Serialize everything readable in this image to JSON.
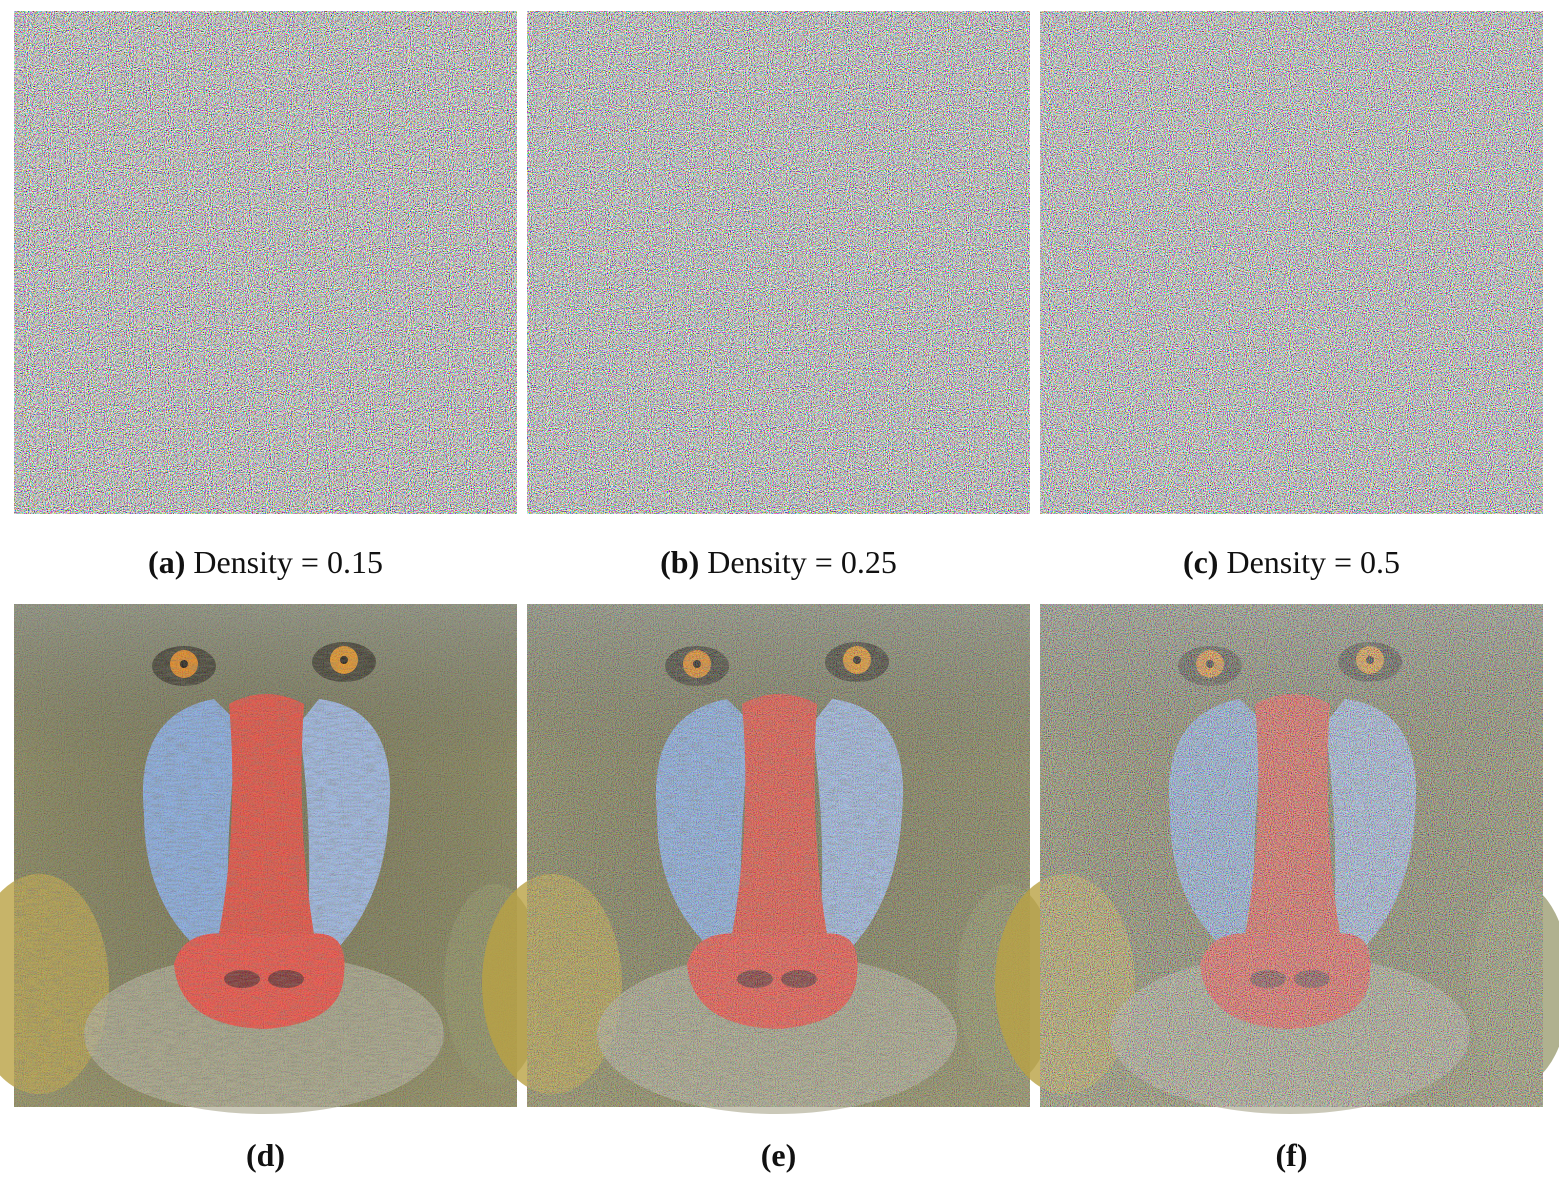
{
  "figure": {
    "panels": [
      {
        "label": "(a)",
        "caption": "Density = 0.15"
      },
      {
        "label": "(b)",
        "caption": "Density = 0.25"
      },
      {
        "label": "(c)",
        "caption": "Density = 0.5"
      },
      {
        "label": "(d)"
      },
      {
        "label": "(e)"
      },
      {
        "label": "(f)"
      }
    ]
  }
}
